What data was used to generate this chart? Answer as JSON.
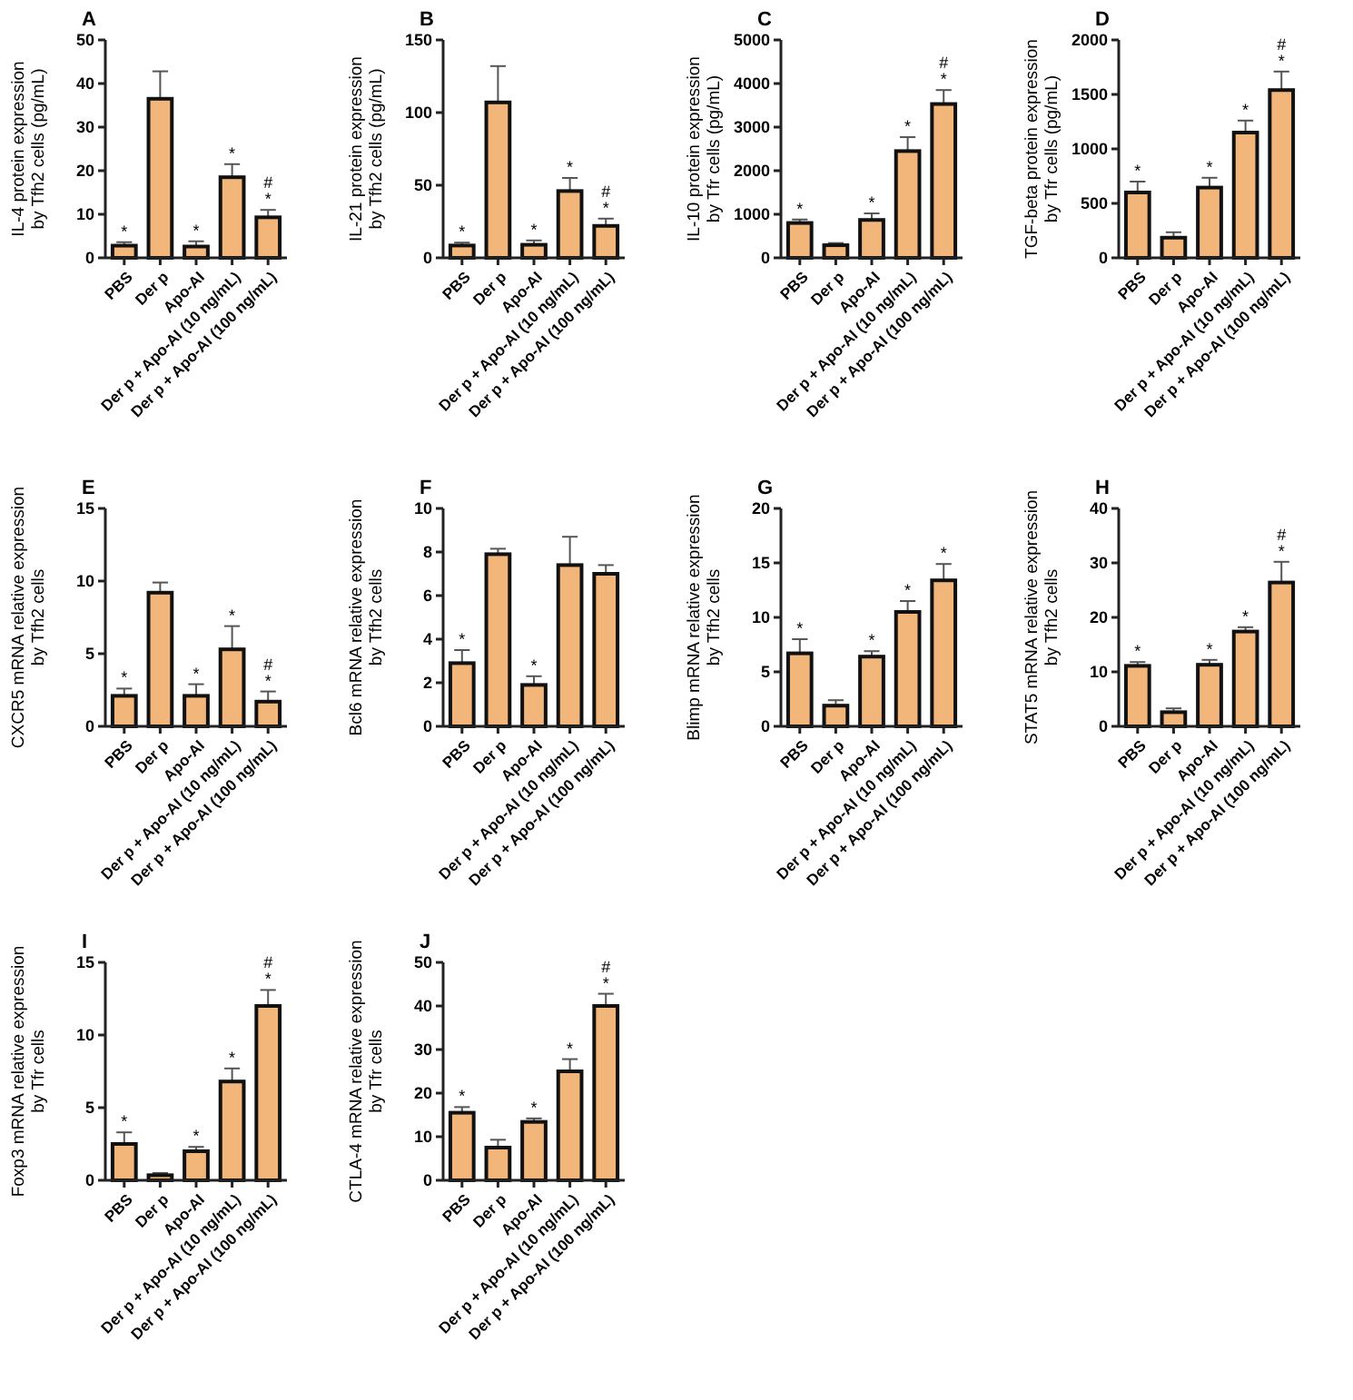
{
  "chart_data": [
    {
      "type": "bar",
      "title": "A",
      "ylabel": "IL-4 protein expression\nby Tfh2 cells (pg/mL)",
      "color": "#f2b57a",
      "categories": [
        "PBS",
        "Der p",
        "Apo-AI",
        "Der p + Apo-AI (10 ng/mL)",
        "Der p + Apo-AI (100 ng/mL)"
      ],
      "values": [
        2.8,
        36.5,
        2.6,
        18.5,
        9.3
      ],
      "errors": [
        0.8,
        6.3,
        1.2,
        3,
        1.7
      ],
      "ylim": [
        0,
        50
      ],
      "yticks": [
        0,
        10,
        20,
        30,
        40,
        50
      ],
      "grid": false,
      "annotations": [
        {
          "text": "*",
          "x": "PBS",
          "y": 3.6
        },
        {
          "text": "*",
          "x": "Apo-AI",
          "y": 3.8
        },
        {
          "text": "*",
          "x": "Der p + Apo-AI (10 ng/mL)",
          "y": 21.5
        },
        {
          "text": "*",
          "x": "Der p + Apo-AI (100 ng/mL)",
          "y": 11
        },
        {
          "text": "#",
          "x": "Der p + Apo-AI (100 ng/mL)",
          "y": 11
        }
      ]
    },
    {
      "type": "bar",
      "title": "B",
      "ylabel": "IL-21 protein expression\nby Tfh2 cells (pg/mL)",
      "color": "#f2b57a",
      "categories": [
        "PBS",
        "Der p",
        "Apo-AI",
        "Der p + Apo-AI (10 ng/mL)",
        "Der p + Apo-AI (100 ng/mL)"
      ],
      "values": [
        8.5,
        107,
        9,
        46,
        22
      ],
      "errors": [
        2,
        25,
        3,
        9,
        5
      ],
      "ylim": [
        0,
        150
      ],
      "yticks": [
        0,
        50,
        100,
        150
      ],
      "grid": false,
      "annotations": [
        {
          "text": "*",
          "x": "PBS",
          "y": 10.5
        },
        {
          "text": "*",
          "x": "Apo-AI",
          "y": 12
        },
        {
          "text": "*",
          "x": "Der p + Apo-AI (10 ng/mL)",
          "y": 55
        },
        {
          "text": "*",
          "x": "Der p + Apo-AI (100 ng/mL)",
          "y": 27
        },
        {
          "text": "#",
          "x": "Der p + Apo-AI (100 ng/mL)",
          "y": 27
        }
      ]
    },
    {
      "type": "bar",
      "title": "C",
      "ylabel": "IL-10 protein expression\nby Tfr cells (pg/mL)",
      "color": "#f2b57a",
      "categories": [
        "PBS",
        "Der p",
        "Apo-AI",
        "Der p + Apo-AI (10 ng/mL)",
        "Der p + Apo-AI (100 ng/mL)"
      ],
      "values": [
        800,
        290,
        870,
        2450,
        3530
      ],
      "errors": [
        80,
        50,
        150,
        320,
        320
      ],
      "ylim": [
        0,
        5000
      ],
      "yticks": [
        0,
        1000,
        2000,
        3000,
        4000,
        5000
      ],
      "grid": false,
      "annotations": [
        {
          "text": "*",
          "x": "PBS",
          "y": 880
        },
        {
          "text": "*",
          "x": "Apo-AI",
          "y": 1020
        },
        {
          "text": "*",
          "x": "Der p + Apo-AI (10 ng/mL)",
          "y": 2770
        },
        {
          "text": "*",
          "x": "Der p + Apo-AI (100 ng/mL)",
          "y": 3850
        },
        {
          "text": "#",
          "x": "Der p + Apo-AI (100 ng/mL)",
          "y": 3850
        }
      ]
    },
    {
      "type": "bar",
      "title": "D",
      "ylabel": "TGF-beta protein expression\nby Tfr cells (pg/mL)",
      "color": "#f2b57a",
      "categories": [
        "PBS",
        "Der p",
        "Apo-AI",
        "Der p + Apo-AI (10 ng/mL)",
        "Der p + Apo-AI (100 ng/mL)"
      ],
      "values": [
        600,
        185,
        645,
        1150,
        1540
      ],
      "errors": [
        100,
        50,
        90,
        110,
        170
      ],
      "ylim": [
        0,
        2000
      ],
      "yticks": [
        0,
        500,
        1000,
        1500,
        2000
      ],
      "grid": false,
      "annotations": [
        {
          "text": "*",
          "x": "PBS",
          "y": 700
        },
        {
          "text": "*",
          "x": "Apo-AI",
          "y": 735
        },
        {
          "text": "*",
          "x": "Der p + Apo-AI (10 ng/mL)",
          "y": 1260
        },
        {
          "text": "*",
          "x": "Der p + Apo-AI (100 ng/mL)",
          "y": 1710
        },
        {
          "text": "#",
          "x": "Der p + Apo-AI (100 ng/mL)",
          "y": 1710
        }
      ]
    },
    {
      "type": "bar",
      "title": "E",
      "ylabel": "CXCR5 mRNA relative expression\nby Tfh2 cells",
      "color": "#f2b57a",
      "categories": [
        "PBS",
        "Der p",
        "Apo-AI",
        "Der p + Apo-AI (10 ng/mL)",
        "Der p + Apo-AI (100 ng/mL)"
      ],
      "values": [
        2.1,
        9.2,
        2.1,
        5.3,
        1.7
      ],
      "errors": [
        0.5,
        0.7,
        0.8,
        1.6,
        0.7
      ],
      "ylim": [
        0,
        15
      ],
      "yticks": [
        0,
        5,
        10,
        15
      ],
      "grid": false,
      "annotations": [
        {
          "text": "*",
          "x": "PBS",
          "y": 2.6
        },
        {
          "text": "*",
          "x": "Apo-AI",
          "y": 2.9
        },
        {
          "text": "*",
          "x": "Der p + Apo-AI (10 ng/mL)",
          "y": 6.9
        },
        {
          "text": "*",
          "x": "Der p + Apo-AI (100 ng/mL)",
          "y": 2.4
        },
        {
          "text": "#",
          "x": "Der p + Apo-AI (100 ng/mL)",
          "y": 2.4
        }
      ]
    },
    {
      "type": "bar",
      "title": "F",
      "ylabel": "Bcl6 mRNA relative expression\nby Tfh2 cells",
      "color": "#f2b57a",
      "categories": [
        "PBS",
        "Der p",
        "Apo-AI",
        "Der p + Apo-AI (10 ng/mL)",
        "Der p + Apo-AI (100 ng/mL)"
      ],
      "values": [
        2.9,
        7.9,
        1.9,
        7.4,
        7.0
      ],
      "errors": [
        0.6,
        0.25,
        0.4,
        1.3,
        0.4
      ],
      "ylim": [
        0,
        10
      ],
      "yticks": [
        0,
        2,
        4,
        6,
        8,
        10
      ],
      "grid": false,
      "annotations": [
        {
          "text": "*",
          "x": "PBS",
          "y": 3.5
        },
        {
          "text": "*",
          "x": "Apo-AI",
          "y": 2.3
        }
      ]
    },
    {
      "type": "bar",
      "title": "G",
      "ylabel": "Blimp mRNA relative expression\nby Tfh2 cells",
      "color": "#f2b57a",
      "categories": [
        "PBS",
        "Der p",
        "Apo-AI",
        "Der p + Apo-AI (10 ng/mL)",
        "Der p + Apo-AI (100 ng/mL)"
      ],
      "values": [
        6.7,
        1.9,
        6.4,
        10.5,
        13.4
      ],
      "errors": [
        1.3,
        0.5,
        0.5,
        1.0,
        1.5
      ],
      "ylim": [
        0,
        20
      ],
      "yticks": [
        0,
        5,
        10,
        15,
        20
      ],
      "grid": false,
      "annotations": [
        {
          "text": "*",
          "x": "PBS",
          "y": 8
        },
        {
          "text": "*",
          "x": "Apo-AI",
          "y": 6.9
        },
        {
          "text": "*",
          "x": "Der p + Apo-AI (10 ng/mL)",
          "y": 11.5
        },
        {
          "text": "*",
          "x": "Der p + Apo-AI (100 ng/mL)",
          "y": 14.9
        }
      ]
    },
    {
      "type": "bar",
      "title": "H",
      "ylabel": "STAT5 mRNA relative expression\nby Tfh2 cells",
      "color": "#f2b57a",
      "categories": [
        "PBS",
        "Der p",
        "Apo-AI",
        "Der p + Apo-AI (10 ng/mL)",
        "Der p + Apo-AI (100 ng/mL)"
      ],
      "values": [
        11.1,
        2.6,
        11.3,
        17.4,
        26.4
      ],
      "errors": [
        0.7,
        0.7,
        0.9,
        0.8,
        3.8
      ],
      "ylim": [
        0,
        40
      ],
      "yticks": [
        0,
        10,
        20,
        30,
        40
      ],
      "grid": false,
      "annotations": [
        {
          "text": "*",
          "x": "PBS",
          "y": 11.8
        },
        {
          "text": "*",
          "x": "Apo-AI",
          "y": 12.2
        },
        {
          "text": "*",
          "x": "Der p + Apo-AI (10 ng/mL)",
          "y": 18.2
        },
        {
          "text": "*",
          "x": "Der p + Apo-AI (100 ng/mL)",
          "y": 30.2
        },
        {
          "text": "#",
          "x": "Der p + Apo-AI (100 ng/mL)",
          "y": 30.2
        }
      ]
    },
    {
      "type": "bar",
      "title": "I",
      "ylabel": "Foxp3 mRNA relative expression\nby Tfr cells",
      "color": "#f2b57a",
      "categories": [
        "PBS",
        "Der p",
        "Apo-AI",
        "Der p + Apo-AI (10 ng/mL)",
        "Der p + Apo-AI (100 ng/mL)"
      ],
      "values": [
        2.5,
        0.35,
        2.0,
        6.8,
        12
      ],
      "errors": [
        0.8,
        0.15,
        0.3,
        0.9,
        1.1
      ],
      "ylim": [
        0,
        15
      ],
      "yticks": [
        0,
        5,
        10,
        15
      ],
      "grid": false,
      "annotations": [
        {
          "text": "*",
          "x": "PBS",
          "y": 3.3
        },
        {
          "text": "*",
          "x": "Apo-AI",
          "y": 2.3
        },
        {
          "text": "*",
          "x": "Der p + Apo-AI (10 ng/mL)",
          "y": 7.7
        },
        {
          "text": "*",
          "x": "Der p + Apo-AI (100 ng/mL)",
          "y": 13.1
        },
        {
          "text": "#",
          "x": "Der p + Apo-AI (100 ng/mL)",
          "y": 13.1
        }
      ]
    },
    {
      "type": "bar",
      "title": "J",
      "ylabel": "CTLA-4 mRNA relative expression\nby Tfr cells",
      "color": "#f2b57a",
      "categories": [
        "PBS",
        "Der p",
        "Apo-AI",
        "Der p + Apo-AI (10 ng/mL)",
        "Der p + Apo-AI (100 ng/mL)"
      ],
      "values": [
        15.5,
        7.5,
        13.4,
        25,
        40
      ],
      "errors": [
        1.3,
        1.8,
        0.8,
        2.8,
        2.8
      ],
      "ylim": [
        0,
        50
      ],
      "yticks": [
        0,
        10,
        20,
        30,
        40,
        50
      ],
      "grid": false,
      "annotations": [
        {
          "text": "*",
          "x": "PBS",
          "y": 16.8
        },
        {
          "text": "*",
          "x": "Apo-AI",
          "y": 14.2
        },
        {
          "text": "*",
          "x": "Der p + Apo-AI (10 ng/mL)",
          "y": 27.8
        },
        {
          "text": "*",
          "x": "Der p + Apo-AI (100 ng/mL)",
          "y": 42.8
        },
        {
          "text": "#",
          "x": "Der p + Apo-AI (100 ng/mL)",
          "y": 42.8
        }
      ]
    }
  ]
}
